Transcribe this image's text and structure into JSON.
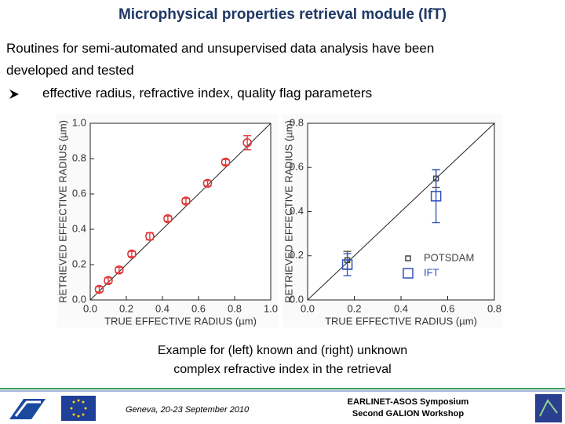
{
  "header": {
    "title": "Microphysical properties retrieval  module  (IfT)"
  },
  "body": {
    "lines": [
      "Routines for semi-automated and unsupervised data analysis have been",
      "developed and tested"
    ],
    "bullet": "effective radius, refractive index, quality flag parameters"
  },
  "chart_data": [
    {
      "type": "scatter",
      "identity_line": true,
      "grid": false,
      "xlabel": "TRUE EFFECTIVE RADIUS (µm)",
      "ylabel": "RETRIEVED EFFECTIVE RADIUS (µm)",
      "xlim": [
        0,
        1
      ],
      "ylim": [
        0,
        1
      ],
      "xticks": [
        {
          "value": 0,
          "label": "0.0"
        },
        0.2,
        0.4,
        0.6,
        0.8,
        {
          "value": 1,
          "label": "1.0"
        }
      ],
      "yticks": [
        {
          "value": 0,
          "label": "0.0"
        },
        0.2,
        0.4,
        0.6,
        0.8,
        {
          "value": 1,
          "label": "1.0"
        }
      ],
      "series": [
        {
          "color": "#e03030",
          "marker": "circle",
          "x": [
            0.05,
            0.1,
            0.16,
            0.23,
            0.33,
            0.43,
            0.53,
            0.65,
            0.75,
            0.87
          ],
          "values": [
            0.06,
            0.11,
            0.17,
            0.26,
            0.36,
            0.46,
            0.56,
            0.66,
            0.78,
            0.89
          ],
          "error": [
            0.015,
            0.015,
            0.015,
            0.015,
            0.02,
            0.015,
            0.015,
            0.015,
            0.015,
            0.04
          ]
        }
      ]
    },
    {
      "type": "scatter",
      "identity_line": true,
      "grid": false,
      "legend": "lower right",
      "xlabel": "TRUE EFFECTIVE RADIUS (µm)",
      "ylabel": "RETRIEVED EFFECTIVE RADIUS (µm)",
      "xlim": [
        0,
        0.8
      ],
      "ylim": [
        0,
        0.8
      ],
      "xticks": [
        {
          "value": 0,
          "label": "0.0"
        },
        0.2,
        0.4,
        0.6,
        0.8
      ],
      "yticks": [
        {
          "value": 0,
          "label": "0.0"
        },
        0.2,
        0.4,
        0.6,
        0.8
      ],
      "series": [
        {
          "name": "POTSDAM",
          "color": "#444444",
          "marker": "square-small",
          "x": [
            0.17,
            0.55
          ],
          "values": [
            0.18,
            0.55
          ],
          "error": [
            0.04,
            0.04
          ]
        },
        {
          "name": "IFT",
          "color": "#3050c0",
          "marker": "square",
          "x": [
            0.17,
            0.55
          ],
          "values": [
            0.16,
            0.47
          ],
          "error": [
            0.05,
            0.12
          ]
        }
      ]
    }
  ],
  "caption": [
    "Example for (left) known and (right) unknown",
    "complex refractive index in the retrieval"
  ],
  "footer": {
    "place": "Geneva, 20-23 September 2010",
    "event": [
      "EARLINET-ASOS Symposium",
      "Second GALION Workshop"
    ]
  }
}
